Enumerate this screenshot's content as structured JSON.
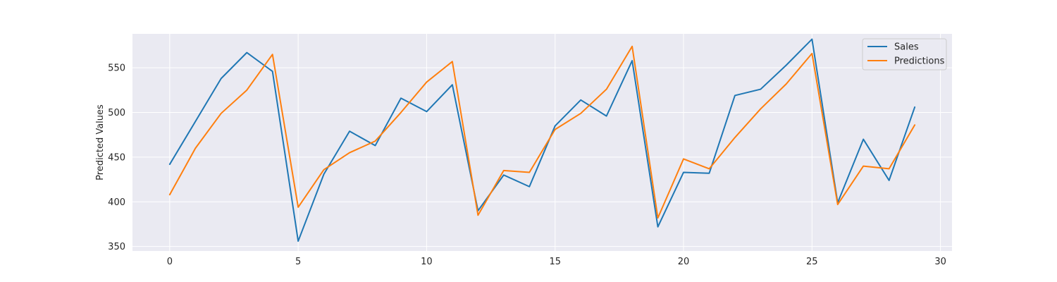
{
  "chart_data": {
    "type": "line",
    "title": "",
    "xlabel": "",
    "ylabel": "Predicted Values",
    "x": [
      0,
      1,
      2,
      3,
      4,
      5,
      6,
      7,
      8,
      9,
      10,
      11,
      12,
      13,
      14,
      15,
      16,
      17,
      18,
      19,
      20,
      21,
      22,
      23,
      24,
      25,
      26,
      27,
      28,
      29
    ],
    "xlim": [
      -1.45,
      30.45
    ],
    "ylim": [
      345,
      588
    ],
    "xticks": [
      0,
      5,
      10,
      15,
      20,
      25,
      30
    ],
    "yticks": [
      350,
      400,
      450,
      500,
      550
    ],
    "grid": true,
    "legend_position": "top-right",
    "series": [
      {
        "name": "Sales",
        "color": "#1f77b4",
        "values": [
          442,
          490,
          538,
          567,
          546,
          356,
          431,
          479,
          463,
          516,
          501,
          531,
          390,
          430,
          417,
          485,
          514,
          496,
          558,
          372,
          433,
          432,
          519,
          526,
          553,
          582,
          399,
          470,
          424,
          506
        ]
      },
      {
        "name": "Predictions",
        "color": "#ff7f0e",
        "values": [
          408,
          460,
          499,
          525,
          565,
          394,
          436,
          455,
          468,
          500,
          534,
          557,
          385,
          435,
          433,
          481,
          499,
          526,
          574,
          382,
          448,
          437,
          472,
          504,
          532,
          566,
          397,
          440,
          437,
          486
        ]
      }
    ]
  }
}
